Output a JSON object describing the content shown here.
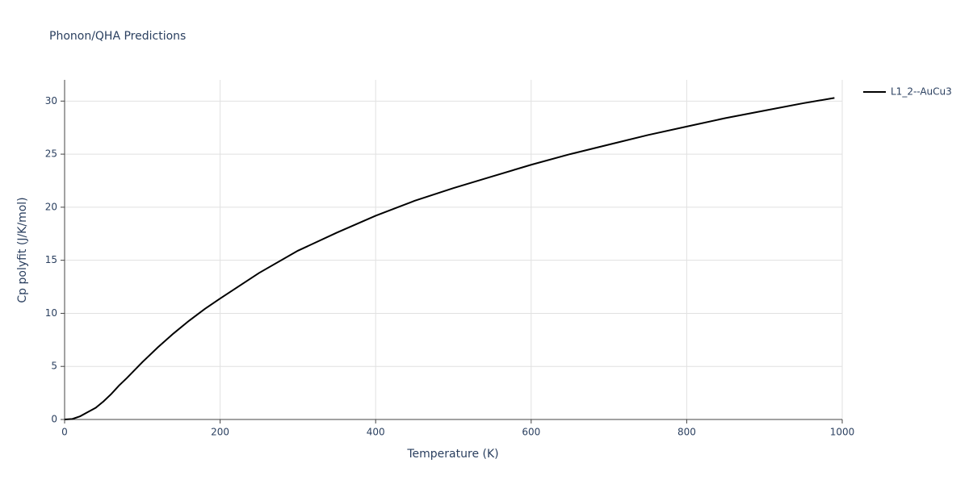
{
  "chart_data": {
    "type": "line",
    "title": "Phonon/QHA Predictions",
    "x_label": "Temperature (K)",
    "y_label": "Cp polyfit (J/K/mol)",
    "x": [
      0,
      10,
      20,
      30,
      40,
      50,
      60,
      70,
      80,
      100,
      120,
      140,
      160,
      180,
      200,
      250,
      300,
      350,
      400,
      450,
      500,
      550,
      600,
      650,
      700,
      750,
      800,
      850,
      900,
      950,
      990
    ],
    "series": [
      {
        "name": "L1_2--AuCu3",
        "color": "#000000",
        "values": [
          0,
          0.05,
          0.3,
          0.7,
          1.1,
          1.7,
          2.4,
          3.2,
          3.9,
          5.4,
          6.8,
          8.1,
          9.3,
          10.4,
          11.4,
          13.8,
          15.9,
          17.6,
          19.2,
          20.6,
          21.8,
          22.9,
          24.0,
          25.0,
          25.9,
          26.8,
          27.6,
          28.4,
          29.1,
          29.8,
          30.3
        ]
      }
    ],
    "xlim": [
      0,
      1000
    ],
    "xticks": [
      0,
      200,
      400,
      600,
      800,
      1000
    ],
    "ylim": [
      0,
      32
    ],
    "yticks": [
      0,
      5,
      10,
      15,
      20,
      25,
      30
    ],
    "grid": true,
    "legend_position": "right"
  }
}
